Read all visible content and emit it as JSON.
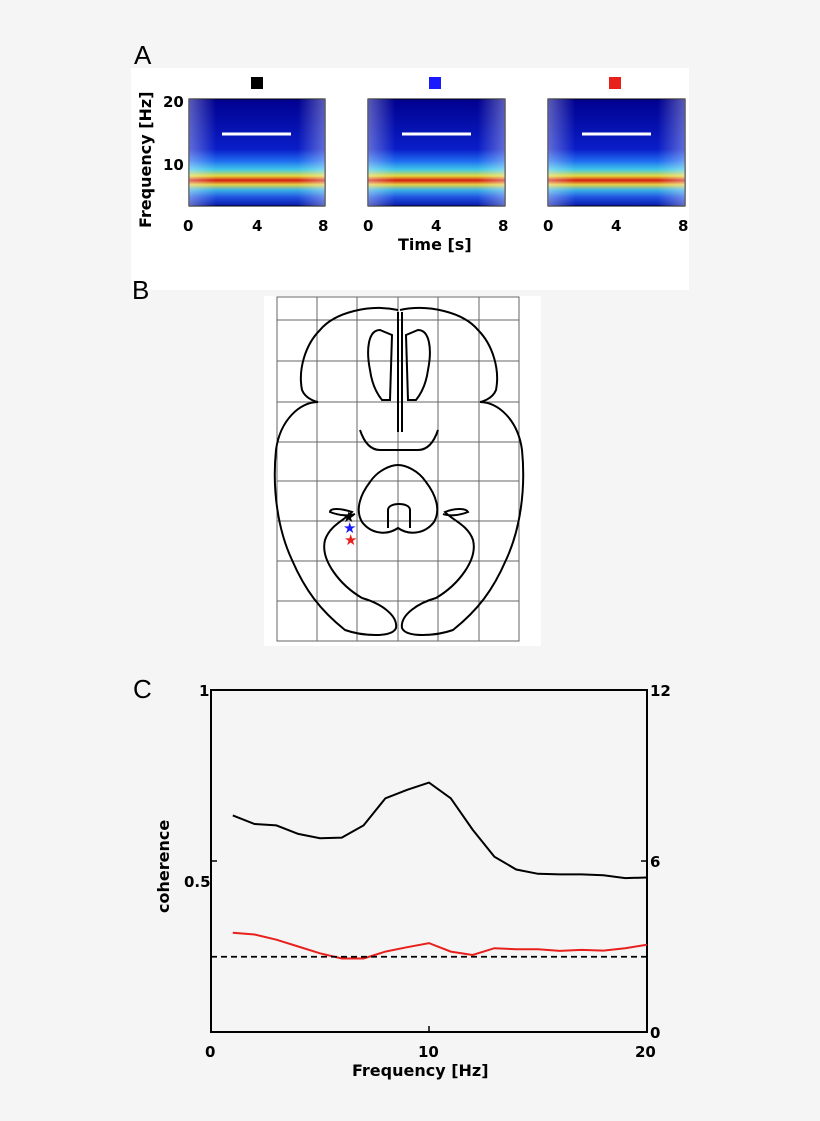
{
  "panels": {
    "a": "A",
    "b": "B",
    "c": "C"
  },
  "colors": {
    "black": "#000000",
    "blue": "#1a1aff",
    "red": "#e8201c",
    "background": "#f5f5f5"
  },
  "chart_data": [
    {
      "type": "heatmap",
      "panel": "A",
      "xlabel": "Time [s]",
      "ylabel": "Frequency [Hz]",
      "xticks": [
        "0",
        "4",
        "8"
      ],
      "yticks": [
        "10",
        "20"
      ],
      "xlim": [
        0,
        8
      ],
      "ylim": [
        3,
        21
      ],
      "series": [
        {
          "marker_color": "#000000",
          "band_peak_hz": 8,
          "bar_hz": 14.5,
          "bar_time": [
            2,
            6
          ]
        },
        {
          "marker_color": "#1a1aff",
          "band_peak_hz": 8,
          "bar_hz": 14.5,
          "bar_time": [
            2,
            6
          ]
        },
        {
          "marker_color": "#e8201c",
          "band_peak_hz": 8,
          "bar_hz": 14.5,
          "bar_time": [
            2,
            6
          ]
        }
      ],
      "colormap": "jet"
    },
    {
      "type": "diagram",
      "panel": "B",
      "grid": {
        "cols": 6,
        "rows": 8
      },
      "markers": [
        {
          "shape": "star",
          "color": "#000000"
        },
        {
          "shape": "star",
          "color": "#1a1aff"
        },
        {
          "shape": "star",
          "color": "#e8201c"
        }
      ]
    },
    {
      "type": "line",
      "panel": "C",
      "xlabel": "Frequency [Hz]",
      "ylabel": "coherence",
      "xlim": [
        0,
        20
      ],
      "ylim_left": [
        0,
        1
      ],
      "ylim_right": [
        0,
        12
      ],
      "xticks": [
        "0",
        "10",
        "20"
      ],
      "yticks_left": [
        "0.5",
        "1"
      ],
      "yticks_right": [
        "0",
        "6",
        "12"
      ],
      "x": [
        1,
        2,
        3,
        4,
        5,
        6,
        7,
        8,
        9,
        10,
        11,
        12,
        13,
        14,
        15,
        16,
        17,
        18,
        19,
        20
      ],
      "series": [
        {
          "color": "#000000",
          "axis": "right",
          "values": [
            7.6,
            7.3,
            7.25,
            6.95,
            6.8,
            6.82,
            7.25,
            8.2,
            8.5,
            8.75,
            8.2,
            7.1,
            6.15,
            5.7,
            5.55,
            5.53,
            5.53,
            5.5,
            5.4,
            5.42
          ]
        },
        {
          "color": "#e8201c",
          "axis": "left",
          "values": [
            0.29,
            0.285,
            0.27,
            0.25,
            0.23,
            0.215,
            0.215,
            0.235,
            0.248,
            0.26,
            0.235,
            0.225,
            0.245,
            0.242,
            0.242,
            0.237,
            0.24,
            0.238,
            0.245,
            0.255
          ]
        }
      ],
      "reference_line": {
        "value": 0.22,
        "axis": "left",
        "style": "dashed",
        "color": "#000000"
      }
    }
  ]
}
